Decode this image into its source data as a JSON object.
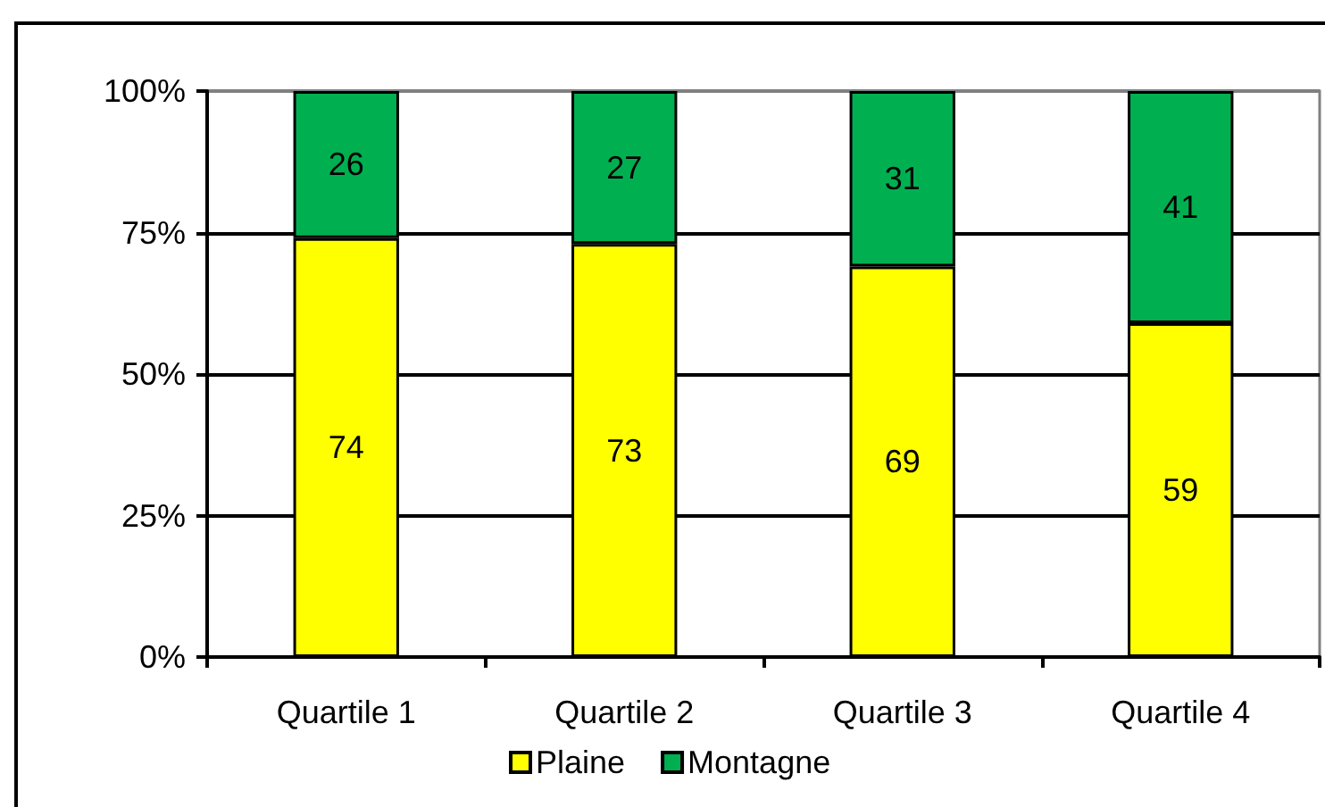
{
  "chart_data": {
    "type": "bar",
    "stacked": true,
    "data_labels": true,
    "categories": [
      "Quartile 1",
      "Quartile 2",
      "Quartile 3",
      "Quartile 4"
    ],
    "series": [
      {
        "name": "Plaine",
        "color": "#ffff00",
        "values": [
          74,
          73,
          69,
          59
        ]
      },
      {
        "name": "Montagne",
        "color": "#00b050",
        "values": [
          26,
          27,
          31,
          41
        ]
      }
    ],
    "ylim": [
      0,
      100
    ],
    "yticks": [
      {
        "value": 0,
        "label": "0%"
      },
      {
        "value": 25,
        "label": "25%"
      },
      {
        "value": 50,
        "label": "50%"
      },
      {
        "value": 75,
        "label": "75%"
      },
      {
        "value": 100,
        "label": "100%"
      }
    ],
    "grid": "y",
    "legend": "bottom"
  }
}
